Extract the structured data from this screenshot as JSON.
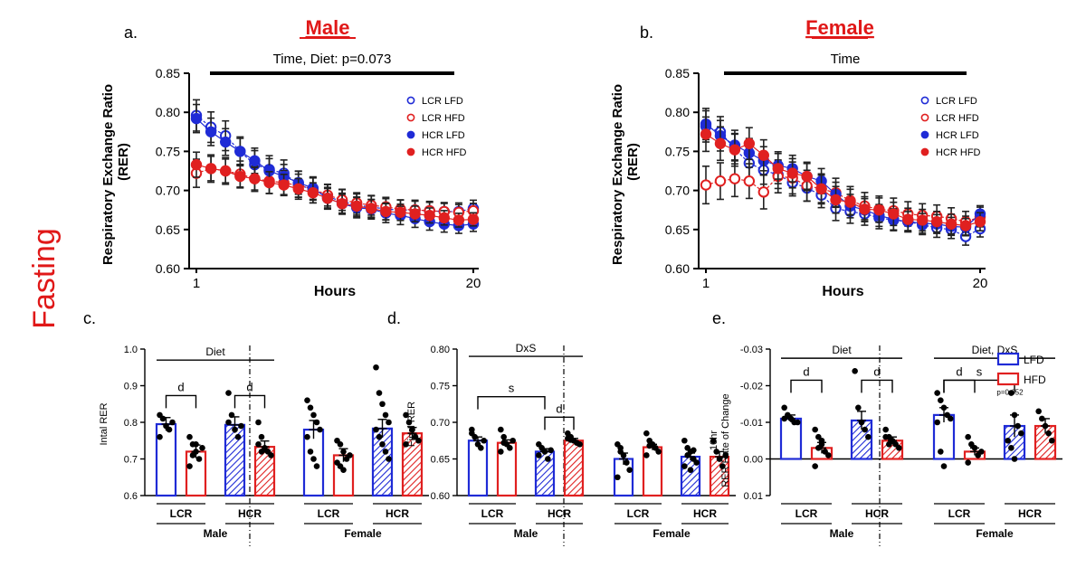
{
  "row_label": "Fasting",
  "colors": {
    "blue": "#1f2bd6",
    "red": "#e02020",
    "black": "#000000",
    "title_red": "#e01818"
  },
  "chart_data": [
    {
      "id": "a",
      "panel": "a.",
      "title": "Male",
      "type": "line",
      "annotation": "Time, Diet: p=0.073",
      "xlabel": "Hours",
      "ylabel": "Respiratory Exchange Ratio",
      "ylabel2": "(RER)",
      "xlim": [
        1,
        20
      ],
      "xticks": [
        "1",
        "20"
      ],
      "ylim": [
        0.6,
        0.85
      ],
      "yticks": [
        "0.60",
        "0.65",
        "0.70",
        "0.75",
        "0.80",
        "0.85"
      ],
      "legend_position": "top-right",
      "series": [
        {
          "name": "LCR LFD",
          "style": "open-blue",
          "error": 0.01,
          "values": [
            0.796,
            0.781,
            0.77,
            0.75,
            0.733,
            0.727,
            0.722,
            0.708,
            0.7,
            0.692,
            0.686,
            0.681,
            0.679,
            0.676,
            0.675,
            0.675,
            0.674,
            0.673,
            0.673,
            0.677
          ]
        },
        {
          "name": "LCR HFD",
          "style": "open-red",
          "error": 0.009,
          "values": [
            0.722,
            0.728,
            0.725,
            0.721,
            0.715,
            0.712,
            0.71,
            0.706,
            0.702,
            0.694,
            0.688,
            0.684,
            0.681,
            0.679,
            0.676,
            0.675,
            0.674,
            0.673,
            0.672,
            0.674
          ]
        },
        {
          "name": "HCR LFD",
          "style": "filled-blue",
          "error": 0.009,
          "values": [
            0.792,
            0.775,
            0.762,
            0.75,
            0.738,
            0.725,
            0.718,
            0.71,
            0.703,
            0.69,
            0.683,
            0.678,
            0.676,
            0.671,
            0.668,
            0.664,
            0.66,
            0.657,
            0.655,
            0.657
          ]
        },
        {
          "name": "HCR HFD",
          "style": "filled-red",
          "error": 0.008,
          "values": [
            0.733,
            0.728,
            0.725,
            0.718,
            0.715,
            0.71,
            0.707,
            0.702,
            0.697,
            0.69,
            0.683,
            0.68,
            0.677,
            0.673,
            0.672,
            0.67,
            0.668,
            0.665,
            0.662,
            0.663
          ]
        }
      ]
    },
    {
      "id": "b",
      "panel": "b.",
      "title": "Female",
      "type": "line",
      "annotation": "Time",
      "xlabel": "Hours",
      "ylabel": "Respiratory Exchange Ratio",
      "ylabel2": "(RER)",
      "xlim": [
        1,
        20
      ],
      "xticks": [
        "1",
        "20"
      ],
      "ylim": [
        0.6,
        0.85
      ],
      "yticks": [
        "0.60",
        "0.65",
        "0.70",
        "0.75",
        "0.80",
        "0.85"
      ],
      "legend_position": "top-right",
      "series": [
        {
          "name": "LCR LFD",
          "style": "open-blue",
          "error": 0.01,
          "values": [
            0.782,
            0.775,
            0.753,
            0.735,
            0.726,
            0.72,
            0.71,
            0.703,
            0.694,
            0.677,
            0.673,
            0.67,
            0.665,
            0.662,
            0.66,
            0.656,
            0.652,
            0.65,
            0.641,
            0.651
          ]
        },
        {
          "name": "LCR HFD",
          "style": "open-red",
          "error": 0.012,
          "values": [
            0.707,
            0.712,
            0.715,
            0.712,
            0.698,
            0.718,
            0.716,
            0.706,
            0.702,
            0.697,
            0.687,
            0.68,
            0.676,
            0.674,
            0.67,
            0.668,
            0.667,
            0.664,
            0.66,
            0.666
          ]
        },
        {
          "name": "HCR LFD",
          "style": "filled-blue",
          "error": 0.01,
          "values": [
            0.785,
            0.77,
            0.758,
            0.748,
            0.738,
            0.732,
            0.728,
            0.718,
            0.712,
            0.695,
            0.68,
            0.675,
            0.668,
            0.663,
            0.66,
            0.658,
            0.657,
            0.654,
            0.653,
            0.67
          ]
        },
        {
          "name": "HCR HFD",
          "style": "filled-red",
          "error": 0.011,
          "values": [
            0.772,
            0.76,
            0.752,
            0.76,
            0.745,
            0.728,
            0.722,
            0.718,
            0.702,
            0.688,
            0.685,
            0.676,
            0.675,
            0.67,
            0.663,
            0.662,
            0.66,
            0.657,
            0.655,
            0.66
          ]
        }
      ]
    },
    {
      "id": "c",
      "panel": "c.",
      "type": "bar",
      "ylabel": "Intal RER",
      "ylim": [
        0.6,
        1.0
      ],
      "yticks": [
        "0.6",
        "0.7",
        "0.8",
        "0.9",
        "1.0"
      ],
      "legend_position": "none",
      "strain_labels": [
        "LCR",
        "HCR",
        "LCR",
        "HCR"
      ],
      "sex_labels": [
        "Male",
        "Female"
      ],
      "bars": [
        {
          "group": "Male LCR LFD",
          "value": 0.795,
          "sem": 0.018,
          "style": "lfd-open",
          "points": [
            0.82,
            0.81,
            0.79,
            0.78,
            0.8,
            0.76
          ]
        },
        {
          "group": "Male LCR HFD",
          "value": 0.72,
          "sem": 0.018,
          "style": "hfd-open",
          "points": [
            0.76,
            0.74,
            0.72,
            0.7,
            0.73,
            0.68,
            0.71,
            0.74
          ]
        },
        {
          "group": "Male HCR LFD",
          "value": 0.793,
          "sem": 0.022,
          "style": "lfd-hatch",
          "points": [
            0.88,
            0.82,
            0.78,
            0.76,
            0.79,
            0.8
          ]
        },
        {
          "group": "Male HCR HFD",
          "value": 0.733,
          "sem": 0.016,
          "style": "hfd-hatch",
          "points": [
            0.8,
            0.76,
            0.73,
            0.72,
            0.71,
            0.74,
            0.72
          ]
        },
        {
          "group": "Female LCR LFD",
          "value": 0.78,
          "sem": 0.025,
          "style": "lfd-open",
          "points": [
            0.86,
            0.84,
            0.82,
            0.8,
            0.78,
            0.76,
            0.72,
            0.7,
            0.68
          ]
        },
        {
          "group": "Female LCR HFD",
          "value": 0.71,
          "sem": 0.018,
          "style": "hfd-open",
          "points": [
            0.75,
            0.74,
            0.72,
            0.7,
            0.71,
            0.69,
            0.68,
            0.67
          ]
        },
        {
          "group": "Female HCR LFD",
          "value": 0.783,
          "sem": 0.025,
          "style": "lfd-hatch",
          "points": [
            0.95,
            0.88,
            0.85,
            0.82,
            0.8,
            0.78,
            0.76,
            0.74,
            0.72,
            0.7
          ]
        },
        {
          "group": "Female HCR HFD",
          "value": 0.77,
          "sem": 0.016,
          "style": "hfd-hatch",
          "points": [
            0.82,
            0.8,
            0.78,
            0.76,
            0.75,
            0.74
          ]
        }
      ],
      "annotations": [
        {
          "kind": "line",
          "text": "Diet",
          "from": 0,
          "to": 3,
          "y": 0.97
        },
        {
          "kind": "bracket",
          "text": "d",
          "from": 0,
          "to": 1,
          "y": 0.873
        },
        {
          "kind": "bracket",
          "text": "d",
          "from": 2,
          "to": 3,
          "y": 0.873
        }
      ]
    },
    {
      "id": "d",
      "panel": "d.",
      "type": "bar",
      "ylabel": "Final RER",
      "ylim": [
        0.6,
        0.8
      ],
      "yticks": [
        "0.60",
        "0.65",
        "0.70",
        "0.75",
        "0.80"
      ],
      "legend_position": "none",
      "strain_labels": [
        "LCR",
        "HCR",
        "LCR",
        "HCR"
      ],
      "sex_labels": [
        "Male",
        "Female"
      ],
      "bars": [
        {
          "group": "Male LCR LFD",
          "value": 0.675,
          "sem": 0.005,
          "style": "lfd-open",
          "points": [
            0.69,
            0.68,
            0.67,
            0.665,
            0.675,
            0.685
          ]
        },
        {
          "group": "Male LCR HFD",
          "value": 0.672,
          "sem": 0.004,
          "style": "hfd-open",
          "points": [
            0.69,
            0.68,
            0.67,
            0.665,
            0.675,
            0.66,
            0.672
          ]
        },
        {
          "group": "Male HCR LFD",
          "value": 0.66,
          "sem": 0.004,
          "style": "lfd-hatch",
          "points": [
            0.67,
            0.665,
            0.66,
            0.65,
            0.662,
            0.655
          ]
        },
        {
          "group": "Male HCR HFD",
          "value": 0.675,
          "sem": 0.003,
          "style": "hfd-hatch",
          "points": [
            0.685,
            0.68,
            0.675,
            0.672,
            0.67,
            0.678,
            0.676
          ]
        },
        {
          "group": "Female LCR LFD",
          "value": 0.65,
          "sem": 0.008,
          "style": "lfd-open",
          "points": [
            0.67,
            0.665,
            0.655,
            0.645,
            0.635,
            0.625,
            0.66
          ]
        },
        {
          "group": "Female LCR HFD",
          "value": 0.666,
          "sem": 0.004,
          "style": "hfd-open",
          "points": [
            0.685,
            0.675,
            0.67,
            0.665,
            0.66,
            0.655,
            0.668
          ]
        },
        {
          "group": "Female HCR LFD",
          "value": 0.653,
          "sem": 0.005,
          "style": "lfd-hatch",
          "points": [
            0.675,
            0.665,
            0.66,
            0.65,
            0.645,
            0.64,
            0.655,
            0.635,
            0.662
          ]
        },
        {
          "group": "Female HCR HFD",
          "value": 0.653,
          "sem": 0.007,
          "style": "hfd-hatch",
          "points": [
            0.675,
            0.66,
            0.65,
            0.64,
            0.655
          ]
        }
      ],
      "annotations": [
        {
          "kind": "line",
          "text": "DxS",
          "from": 0,
          "to": 3,
          "y": 0.79
        },
        {
          "kind": "bracket",
          "text": "s",
          "from": 0,
          "to": 2,
          "y": 0.735
        },
        {
          "kind": "bracket",
          "text": "d",
          "from": 2,
          "to": 3,
          "y": 0.707
        }
      ]
    },
    {
      "id": "e",
      "panel": "e.",
      "type": "bar",
      "ylabel": "10hr",
      "ylabel2": "RER Rate of Change",
      "ylim": [
        0.01,
        -0.03
      ],
      "inverted": true,
      "yticks": [
        "-0.03",
        "-0.02",
        "-0.01",
        "0.00",
        "0.01"
      ],
      "legend_position": "right",
      "legend": [
        {
          "label": "LFD",
          "color": "blue"
        },
        {
          "label": "HFD",
          "color": "red"
        }
      ],
      "strain_labels": [
        "LCR",
        "HCR",
        "LCR",
        "HCR"
      ],
      "sex_labels": [
        "Male",
        "Female"
      ],
      "bars": [
        {
          "group": "Male LCR LFD",
          "value": -0.011,
          "sem": 0.001,
          "style": "lfd-open",
          "points": [
            -0.014,
            -0.012,
            -0.011,
            -0.01,
            -0.01,
            -0.011
          ]
        },
        {
          "group": "Male LCR HFD",
          "value": -0.003,
          "sem": 0.0015,
          "style": "hfd-open",
          "points": [
            -0.008,
            -0.006,
            -0.004,
            -0.002,
            -0.001,
            0.002,
            -0.003,
            -0.005
          ]
        },
        {
          "group": "Male HCR LFD",
          "value": -0.0105,
          "sem": 0.0025,
          "style": "lfd-hatch",
          "points": [
            -0.024,
            -0.014,
            -0.01,
            -0.008,
            -0.006
          ]
        },
        {
          "group": "Male HCR HFD",
          "value": -0.005,
          "sem": 0.001,
          "style": "hfd-hatch",
          "points": [
            -0.008,
            -0.006,
            -0.005,
            -0.004,
            -0.003,
            -0.006,
            -0.004
          ]
        },
        {
          "group": "Female LCR LFD",
          "value": -0.012,
          "sem": 0.002,
          "style": "lfd-open",
          "points": [
            -0.018,
            -0.016,
            -0.014,
            -0.012,
            -0.011,
            -0.01,
            -0.002,
            0.002
          ]
        },
        {
          "group": "Female LCR HFD",
          "value": -0.002,
          "sem": 0.001,
          "style": "hfd-open",
          "points": [
            -0.006,
            -0.004,
            -0.003,
            -0.001,
            -0.002,
            0.001
          ]
        },
        {
          "group": "Female HCR LFD",
          "value": -0.009,
          "sem": 0.003,
          "style": "lfd-hatch",
          "points": [
            -0.021,
            -0.018,
            -0.012,
            -0.009,
            -0.007,
            -0.005,
            -0.003,
            0.0
          ]
        },
        {
          "group": "Female HCR HFD",
          "value": -0.009,
          "sem": 0.002,
          "style": "hfd-hatch",
          "points": [
            -0.013,
            -0.011,
            -0.009,
            -0.007,
            -0.005
          ]
        }
      ],
      "annotations": [
        {
          "kind": "line",
          "text": "Diet",
          "from": 0,
          "to": 3,
          "y": -0.0275
        },
        {
          "kind": "line",
          "text": "Diet, DxS",
          "from": 4,
          "to": 7,
          "y": -0.0275
        },
        {
          "kind": "bracket",
          "text": "d",
          "from": 0,
          "to": 1,
          "y": -0.0215
        },
        {
          "kind": "bracket",
          "text": "d",
          "from": 2,
          "to": 3,
          "y": -0.0215
        },
        {
          "kind": "bracket",
          "text": "d",
          "from": 4,
          "to": 5,
          "y": -0.0215
        },
        {
          "kind": "bracket",
          "text": "s",
          "from": 4,
          "to": 6,
          "y": -0.0215
        },
        {
          "kind": "small",
          "text": "p=0.052",
          "from": 5,
          "to": 7,
          "y": -0.0175
        }
      ]
    }
  ]
}
